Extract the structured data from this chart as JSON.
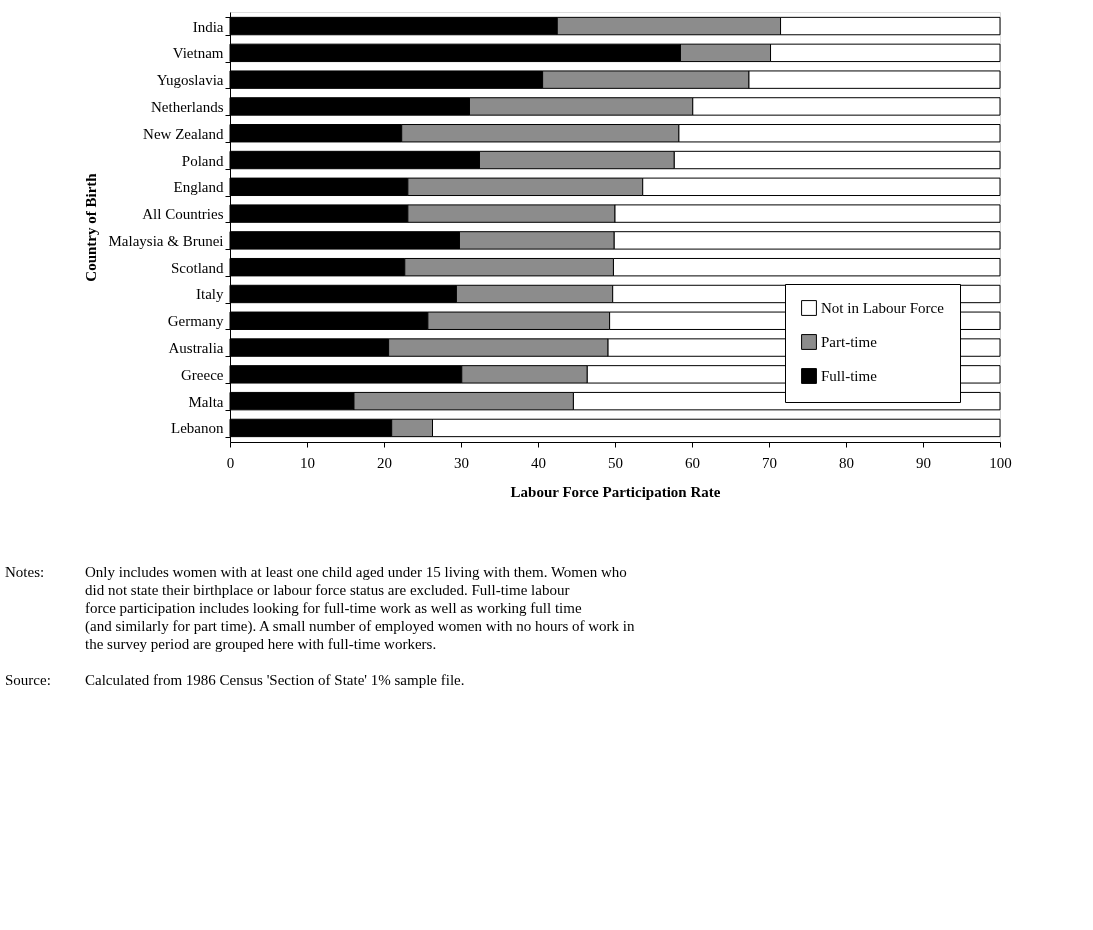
{
  "chart_data": {
    "type": "bar",
    "orientation": "horizontal",
    "stacked": true,
    "categories": [
      "India",
      "Vietnam",
      "Yugoslavia",
      "Netherlands",
      "New Zealand",
      "Poland",
      "England",
      "All Countries",
      "Malaysia & Brunei",
      "Scotland",
      "Italy",
      "Germany",
      "Australia",
      "Greece",
      "Malta",
      "Lebanon"
    ],
    "series": [
      {
        "name": "Full-time",
        "color": "#000000",
        "values": [
          42.5,
          58.5,
          40.6,
          31.1,
          22.3,
          32.4,
          23.1,
          23.1,
          29.8,
          22.7,
          29.4,
          25.7,
          20.6,
          30.1,
          16.1,
          21.0
        ]
      },
      {
        "name": "Part-time",
        "color": "#8c8c8c",
        "values": [
          29.0,
          11.7,
          26.8,
          29.0,
          36.0,
          25.3,
          30.5,
          26.9,
          20.1,
          27.1,
          20.3,
          23.6,
          28.5,
          16.3,
          28.5,
          5.3
        ]
      },
      {
        "name": "Not in Labour Force",
        "color": "#ffffff",
        "values": [
          28.5,
          29.8,
          32.6,
          39.9,
          41.7,
          42.3,
          46.4,
          50.0,
          50.1,
          50.2,
          50.3,
          50.7,
          50.9,
          53.6,
          55.4,
          73.7
        ]
      }
    ],
    "xlim": [
      0,
      100
    ],
    "xticks": [
      0,
      10,
      20,
      30,
      40,
      50,
      60,
      70,
      80,
      90,
      100
    ],
    "xlabel": "Labour Force Participation Rate",
    "ylabel": "Country of Birth",
    "legend": "bottom right",
    "grid": false,
    "annotations": [
      "Notes: Only includes women with at least one child aged under 15 living with them. Women who did not state their birthplace or labour force status are excluded. Full-time labour force participation includes looking for full-time work as well as working full time (and similarly for part time). A small number of employed women with no hours of work in the survey period are grouped here with full-time workers.",
      "Source: Calculated from 1986 Census 'Section of State' 1% sample file."
    ]
  }
}
